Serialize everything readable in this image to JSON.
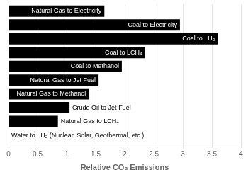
{
  "chart_data": {
    "type": "bar",
    "orientation": "horizontal",
    "categories": [
      "Water to LH₂ (Nuclear, Solar, Geothermal, etc.)",
      "Natural Gas to LCH₄",
      "Crude Oil to Jet Fuel",
      "Natural Gas to Methanol",
      "Natural Gas to Jet Fuel",
      "Coal to Methanol",
      "Coal to LCH₄",
      "Coal to LH₂",
      "Coal to Electricity",
      "Natural Gas to Electricity"
    ],
    "values": [
      0.0,
      0.85,
      1.05,
      1.38,
      1.55,
      1.95,
      2.35,
      3.6,
      2.95,
      1.65
    ],
    "color": "#000000",
    "xlabel": "Relative CO₂ Emissions",
    "xlim": [
      0,
      4
    ],
    "xticks": [
      0,
      0.5,
      1,
      1.5,
      2,
      2.5,
      3,
      3.5,
      4
    ],
    "grid": true,
    "tick_labels": "x"
  }
}
